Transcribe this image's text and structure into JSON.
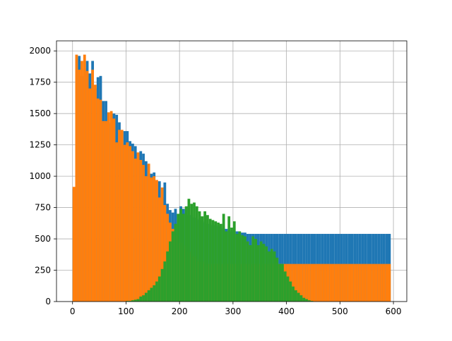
{
  "chart_data": {
    "type": "bar",
    "title": "",
    "xlabel": "",
    "ylabel": "",
    "xlim": [
      -30,
      625
    ],
    "ylim": [
      0,
      2080
    ],
    "grid": true,
    "xticks": [
      0,
      100,
      200,
      300,
      400,
      500,
      600
    ],
    "yticks": [
      0,
      250,
      500,
      750,
      1000,
      1250,
      1500,
      1750,
      2000
    ],
    "bin_start": 0,
    "bin_width": 5,
    "series": [
      {
        "color": "#1f77b4",
        "values": [
          900,
          1940,
          1960,
          1800,
          1860,
          1920,
          1820,
          1920,
          1700,
          1790,
          1800,
          1600,
          1600,
          1420,
          1430,
          1500,
          1490,
          1430,
          1260,
          1360,
          1360,
          1280,
          1260,
          1240,
          1180,
          1200,
          1180,
          1120,
          1090,
          1020,
          1030,
          960,
          960,
          830,
          950,
          780,
          730,
          710,
          740,
          700,
          760,
          740,
          710,
          690,
          690,
          670,
          660,
          650,
          640,
          630,
          620,
          620,
          610,
          610,
          600,
          590,
          580,
          580,
          570,
          560,
          560,
          560,
          550,
          550,
          550,
          540,
          540,
          540,
          540,
          540,
          540,
          540,
          540,
          540,
          540,
          540,
          540,
          540,
          540,
          540,
          540,
          540,
          540,
          540,
          540,
          540,
          540,
          540,
          540,
          540,
          540,
          540,
          540,
          540,
          540,
          540,
          540,
          540,
          540,
          540,
          540,
          540,
          540,
          540,
          540,
          540,
          540,
          540,
          540,
          540,
          540,
          540,
          540,
          540,
          540,
          540,
          540,
          540,
          540
        ]
      },
      {
        "color": "#ff7f0e",
        "values": [
          915,
          1970,
          1850,
          1920,
          1970,
          1840,
          1700,
          1850,
          1730,
          1620,
          1610,
          1440,
          1440,
          1510,
          1520,
          1460,
          1270,
          1370,
          1370,
          1250,
          1270,
          1240,
          1200,
          1140,
          1190,
          1130,
          1090,
          1000,
          1100,
          990,
          1000,
          970,
          830,
          910,
          770,
          700,
          630,
          580,
          530,
          500,
          470,
          450,
          420,
          400,
          380,
          360,
          340,
          320,
          320,
          300,
          300,
          300,
          300,
          300,
          300,
          300,
          300,
          300,
          300,
          300,
          300,
          300,
          300,
          300,
          300,
          300,
          300,
          300,
          300,
          300,
          300,
          300,
          300,
          300,
          300,
          300,
          300,
          300,
          300,
          300,
          300,
          300,
          300,
          300,
          300,
          300,
          300,
          300,
          300,
          300,
          300,
          300,
          300,
          300,
          300,
          300,
          300,
          300,
          300,
          300,
          300,
          300,
          300,
          300,
          300,
          300,
          300,
          300,
          300,
          300,
          300,
          300,
          300,
          300,
          300,
          300,
          300,
          300,
          300
        ]
      },
      {
        "color": "#2ca02c",
        "values": [
          0,
          0,
          0,
          0,
          0,
          0,
          0,
          0,
          0,
          0,
          0,
          0,
          0,
          0,
          0,
          0,
          0,
          0,
          0,
          0,
          5,
          5,
          10,
          15,
          20,
          40,
          50,
          70,
          90,
          110,
          130,
          160,
          200,
          260,
          320,
          400,
          480,
          560,
          620,
          700,
          740,
          700,
          760,
          820,
          780,
          790,
          760,
          720,
          680,
          720,
          690,
          660,
          650,
          640,
          630,
          620,
          700,
          560,
          680,
          590,
          640,
          540,
          560,
          530,
          520,
          480,
          450,
          520,
          500,
          450,
          480,
          460,
          440,
          400,
          420,
          400,
          350,
          300,
          300,
          240,
          200,
          160,
          120,
          90,
          70,
          50,
          30,
          20,
          10,
          5,
          0,
          0,
          0,
          0,
          0,
          0,
          0,
          0,
          0,
          0,
          0,
          0,
          0,
          0,
          0,
          0,
          0,
          0,
          0,
          0,
          0,
          0,
          0,
          0,
          0,
          0,
          0,
          0,
          0,
          0
        ]
      }
    ],
    "notes": "Blue right tail approx 570-590; orange right tail approx 190-300; values in counts per bin"
  }
}
